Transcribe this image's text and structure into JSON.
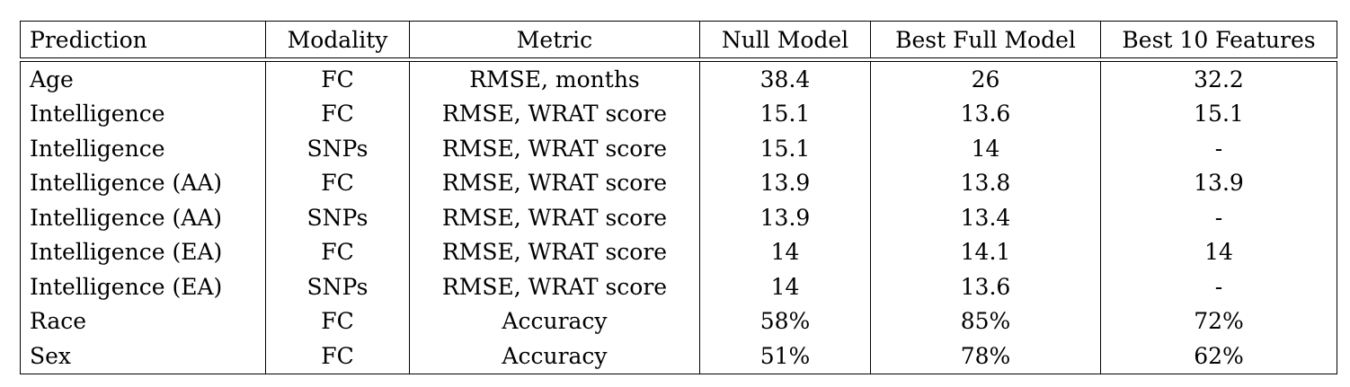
{
  "table": {
    "columns": [
      "Prediction",
      "Modality",
      "Metric",
      "Null Model",
      "Best Full Model",
      "Best 10 Features"
    ],
    "rows": [
      {
        "prediction": "Age",
        "modality": "FC",
        "metric": "RMSE, months",
        "null": "38.4",
        "full": "26",
        "full_bold": true,
        "top10": "32.2",
        "top10_bold": true
      },
      {
        "prediction": "Intelligence",
        "modality": "FC",
        "metric": "RMSE, WRAT score",
        "null": "15.1",
        "full": "13.6",
        "full_bold": true,
        "top10": "15.1",
        "top10_bold": false
      },
      {
        "prediction": "Intelligence",
        "modality": "SNPs",
        "metric": "RMSE, WRAT score",
        "null": "15.1",
        "full": "14",
        "full_bold": true,
        "top10": "-",
        "top10_bold": false
      },
      {
        "prediction": "Intelligence (AA)",
        "modality": "FC",
        "metric": "RMSE, WRAT score",
        "null": "13.9",
        "full": "13.8",
        "full_bold": false,
        "top10": "13.9",
        "top10_bold": false
      },
      {
        "prediction": "Intelligence (AA)",
        "modality": "SNPs",
        "metric": "RMSE, WRAT score",
        "null": "13.9",
        "full": "13.4",
        "full_bold": false,
        "top10": "-",
        "top10_bold": false
      },
      {
        "prediction": "Intelligence (EA)",
        "modality": "FC",
        "metric": "RMSE, WRAT score",
        "null": "14",
        "full": "14.1",
        "full_bold": false,
        "top10": "14",
        "top10_bold": false
      },
      {
        "prediction": "Intelligence (EA)",
        "modality": "SNPs",
        "metric": "RMSE, WRAT score",
        "null": "14",
        "full": "13.6",
        "full_bold": false,
        "top10": "-",
        "top10_bold": false
      },
      {
        "prediction": "Race",
        "modality": "FC",
        "metric": "Accuracy",
        "null": "58%",
        "full": "85%",
        "full_bold": true,
        "top10": "72%",
        "top10_bold": true
      },
      {
        "prediction": "Sex",
        "modality": "FC",
        "metric": "Accuracy",
        "null": "51%",
        "full": "78%",
        "full_bold": true,
        "top10": "62%",
        "top10_bold": true
      }
    ]
  }
}
